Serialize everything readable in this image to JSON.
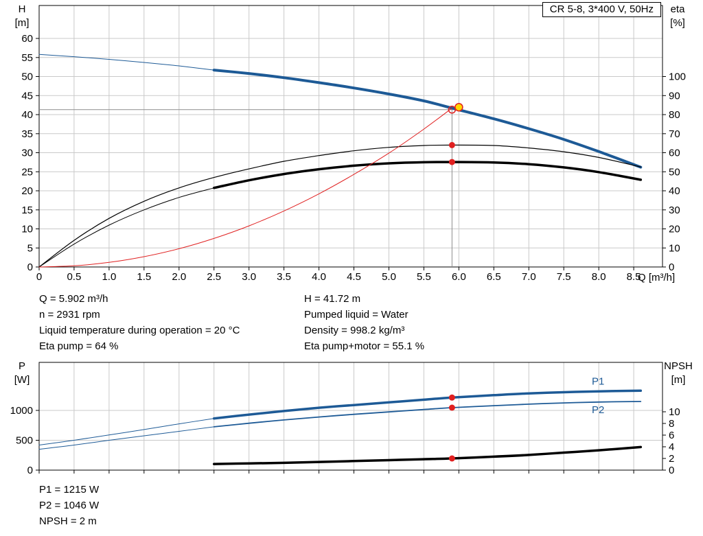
{
  "colors": {
    "blue": "#1d5a96",
    "black": "#000000",
    "red": "#e02020",
    "yellow": "#ffd700",
    "grid": "#c9c9c9",
    "axis": "#000000",
    "crosshair": "#8c8c8c"
  },
  "title_box": "CR 5-8, 3*400 V, 50Hz",
  "info_top": {
    "left": [
      "Q = 5.902 m³/h",
      "n = 2931 rpm",
      "Liquid temperature during operation = 20 °C",
      "Eta pump = 64 %"
    ],
    "right": [
      "H = 41.72 m",
      "Pumped liquid = Water",
      "Density = 998.2 kg/m³",
      "Eta pump+motor = 55.1 %"
    ]
  },
  "info_bottom": [
    "P1 = 1215 W",
    "P2 = 1046 W",
    "NPSH = 2 m"
  ],
  "chart_data": [
    {
      "type": "line",
      "title": "CR 5-8, 3*400 V, 50Hz",
      "x_axis": {
        "name": "Q",
        "label": "Q [m³/h]",
        "min": 0,
        "max": 8.911,
        "tick_labels": [
          "0",
          "0.5",
          "1.0",
          "1.5",
          "2.0",
          "2.5",
          "3.0",
          "3.5",
          "4.0",
          "4.5",
          "5.0",
          "5.5",
          "6.0",
          "6.5",
          "7.0",
          "7.5",
          "8.0",
          "8.5"
        ]
      },
      "y_left": {
        "name": "H",
        "unit": "[m]",
        "min": 0,
        "max": 68.65,
        "tick_labels": [
          "0",
          "5",
          "10",
          "15",
          "20",
          "25",
          "30",
          "35",
          "40",
          "45",
          "50",
          "55",
          "60"
        ]
      },
      "y_right": {
        "name": "eta",
        "unit": "[%]",
        "min": 0,
        "max": 137.3,
        "tick_labels": [
          "0",
          "10",
          "20",
          "30",
          "40",
          "50",
          "60",
          "70",
          "80",
          "90",
          "100"
        ]
      },
      "operating_point": {
        "q": 5.902,
        "h": 41.72
      },
      "crosshair": {
        "q": 5.902,
        "h": 41.3
      },
      "series": [
        {
          "name": "pump-curve-extension",
          "axis": "left",
          "color": "blue",
          "width": 1,
          "points": [
            [
              0,
              55.8
            ],
            [
              0.5,
              55.2
            ],
            [
              1,
              54.5
            ],
            [
              1.5,
              53.7
            ],
            [
              2,
              52.8
            ],
            [
              2.5,
              51.7
            ]
          ]
        },
        {
          "name": "pump-curve",
          "axis": "left",
          "color": "blue",
          "width": 4,
          "points": [
            [
              2.5,
              51.7
            ],
            [
              3,
              50.8
            ],
            [
              3.5,
              49.7
            ],
            [
              4,
              48.4
            ],
            [
              4.5,
              47.0
            ],
            [
              5,
              45.4
            ],
            [
              5.5,
              43.6
            ],
            [
              5.902,
              41.72
            ],
            [
              6.5,
              38.9
            ],
            [
              7,
              36.3
            ],
            [
              7.5,
              33.5
            ],
            [
              8,
              30.3
            ],
            [
              8.6,
              26.2
            ]
          ]
        },
        {
          "name": "eta-pump-curve",
          "axis": "right",
          "color": "black",
          "width": 1.2,
          "points": [
            [
              0,
              0
            ],
            [
              0.5,
              14
            ],
            [
              1,
              25.5
            ],
            [
              1.5,
              34.5
            ],
            [
              2,
              41.5
            ],
            [
              2.5,
              47
            ],
            [
              3,
              51.5
            ],
            [
              3.5,
              55.5
            ],
            [
              4,
              58.5
            ],
            [
              4.5,
              61
            ],
            [
              5,
              62.8
            ],
            [
              5.5,
              63.8
            ],
            [
              5.902,
              64
            ],
            [
              6.5,
              63.8
            ],
            [
              7,
              62.5
            ],
            [
              7.5,
              60.5
            ],
            [
              8,
              57.5
            ],
            [
              8.6,
              52.5
            ]
          ]
        },
        {
          "name": "eta-pump-motor-extension",
          "axis": "right",
          "color": "black",
          "width": 1,
          "points": [
            [
              0,
              0
            ],
            [
              0.5,
              12
            ],
            [
              1,
              22
            ],
            [
              1.5,
              30
            ],
            [
              2,
              36.5
            ],
            [
              2.5,
              41.5
            ]
          ]
        },
        {
          "name": "eta-pump-motor-curve",
          "axis": "right",
          "color": "black",
          "width": 3.5,
          "points": [
            [
              2.5,
              41.5
            ],
            [
              3,
              45.5
            ],
            [
              3.5,
              48.8
            ],
            [
              4,
              51.3
            ],
            [
              4.5,
              53.2
            ],
            [
              5,
              54.4
            ],
            [
              5.5,
              55
            ],
            [
              5.902,
              55.1
            ],
            [
              6.5,
              54.9
            ],
            [
              7,
              54
            ],
            [
              7.5,
              52.3
            ],
            [
              8,
              49.8
            ],
            [
              8.6,
              45.8
            ]
          ]
        },
        {
          "name": "system-curve",
          "axis": "left",
          "color": "red",
          "width": 1,
          "points": [
            [
              0,
              0
            ],
            [
              0.5,
              0.3
            ],
            [
              1,
              1.2
            ],
            [
              1.5,
              2.7
            ],
            [
              2,
              4.8
            ],
            [
              2.5,
              7.5
            ],
            [
              3,
              10.8
            ],
            [
              3.5,
              14.7
            ],
            [
              4,
              19.2
            ],
            [
              4.5,
              24.3
            ],
            [
              5,
              29.9
            ],
            [
              5.5,
              36.2
            ],
            [
              5.902,
              41.72
            ]
          ]
        }
      ],
      "markers": [
        {
          "name": "duty-point-marker",
          "shape": "open-circle",
          "axis": "left",
          "q": 5.902,
          "v": 41.3,
          "r": 5,
          "stroke": "red"
        },
        {
          "name": "operating-point-marker",
          "shape": "dot",
          "axis": "left",
          "q": 6.0,
          "v": 41.95,
          "r": 5.5,
          "fill": "yellow",
          "stroke": "red"
        },
        {
          "name": "eta-pump-point",
          "shape": "dot",
          "axis": "right",
          "q": 5.902,
          "v": 64,
          "r": 4.5,
          "fill": "red"
        },
        {
          "name": "eta-pump-motor-point",
          "shape": "dot",
          "axis": "right",
          "q": 5.902,
          "v": 55.1,
          "r": 4.5,
          "fill": "red"
        }
      ]
    },
    {
      "type": "line",
      "x_axis": {
        "name": "Q",
        "min": 0,
        "max": 8.911,
        "tick_labels": []
      },
      "y_left": {
        "name": "P",
        "unit": "[W]",
        "min": 0,
        "max": 1805,
        "tick_labels": [
          "0",
          "500",
          "1000"
        ]
      },
      "y_right": {
        "name": "NPSH",
        "unit": "[m]",
        "min": 0,
        "max": 18.47,
        "tick_labels": [
          "0",
          "2",
          "4",
          "6",
          "8",
          "10"
        ]
      },
      "series": [
        {
          "name": "p1-extension",
          "axis": "left",
          "color": "blue",
          "width": 1,
          "points": [
            [
              0,
              420
            ],
            [
              0.5,
              500
            ],
            [
              1,
              590
            ],
            [
              1.5,
              680
            ],
            [
              2,
              775
            ],
            [
              2.5,
              865
            ]
          ]
        },
        {
          "name": "p1-curve",
          "axis": "left",
          "color": "blue",
          "width": 3.5,
          "points": [
            [
              2.5,
              865
            ],
            [
              3,
              930
            ],
            [
              3.5,
              990
            ],
            [
              4,
              1045
            ],
            [
              4.5,
              1090
            ],
            [
              5,
              1135
            ],
            [
              5.5,
              1180
            ],
            [
              5.902,
              1215
            ],
            [
              6.5,
              1255
            ],
            [
              7,
              1285
            ],
            [
              7.5,
              1305
            ],
            [
              8,
              1320
            ],
            [
              8.6,
              1330
            ]
          ],
          "label": {
            "text": "P1",
            "q": 7.9,
            "v": 1430
          }
        },
        {
          "name": "p2-extension",
          "axis": "left",
          "color": "blue",
          "width": 1,
          "points": [
            [
              0,
              350
            ],
            [
              0.5,
              420
            ],
            [
              1,
              500
            ],
            [
              1.5,
              575
            ],
            [
              2,
              650
            ],
            [
              2.5,
              725
            ]
          ]
        },
        {
          "name": "p2-curve",
          "axis": "left",
          "color": "blue",
          "width": 1.8,
          "points": [
            [
              2.5,
              725
            ],
            [
              3,
              785
            ],
            [
              3.5,
              840
            ],
            [
              4,
              890
            ],
            [
              4.5,
              935
            ],
            [
              5,
              975
            ],
            [
              5.5,
              1015
            ],
            [
              5.902,
              1046
            ],
            [
              6.5,
              1080
            ],
            [
              7,
              1105
            ],
            [
              7.5,
              1125
            ],
            [
              8,
              1140
            ],
            [
              8.6,
              1150
            ]
          ],
          "label": {
            "text": "P2",
            "q": 7.9,
            "v": 955
          }
        },
        {
          "name": "npsh-curve",
          "axis": "right",
          "color": "black",
          "width": 3.5,
          "points": [
            [
              2.5,
              1.05
            ],
            [
              3,
              1.15
            ],
            [
              3.5,
              1.25
            ],
            [
              4,
              1.4
            ],
            [
              4.5,
              1.55
            ],
            [
              5,
              1.7
            ],
            [
              5.5,
              1.87
            ],
            [
              5.902,
              2.0
            ],
            [
              6.5,
              2.3
            ],
            [
              7,
              2.6
            ],
            [
              7.5,
              3.0
            ],
            [
              8,
              3.4
            ],
            [
              8.6,
              3.95
            ]
          ]
        }
      ],
      "markers": [
        {
          "name": "p1-point",
          "shape": "dot",
          "axis": "left",
          "q": 5.902,
          "v": 1215,
          "r": 4.5,
          "fill": "red"
        },
        {
          "name": "p2-point",
          "shape": "dot",
          "axis": "left",
          "q": 5.902,
          "v": 1046,
          "r": 4.5,
          "fill": "red"
        },
        {
          "name": "npsh-point",
          "shape": "dot",
          "axis": "right",
          "q": 5.902,
          "v": 2,
          "r": 4.5,
          "fill": "red"
        }
      ]
    }
  ]
}
